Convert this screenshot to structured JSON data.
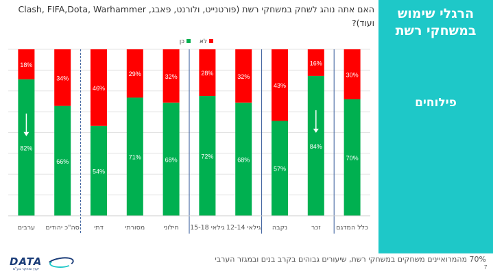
{
  "side": {
    "title": "הרגלי שימוש במשחקי רשת",
    "subtitle": "פילוחים"
  },
  "question": "האם אתה נוהג לשחק במשחקי רשת (פורטנייט, ולורנט, פאבג, Clash, FIFA,Dota, Warhammer ועוד)?",
  "footer": {
    "note": "70% מהמרואיינים משחקים במשחקי רשת, שיעורים גבוהים בקרב בנים ובמגזר הערבי",
    "page": "7",
    "logo_text": "DATA",
    "logo_tagline": "ייעוץ ומחקר בע\"מ"
  },
  "colors": {
    "yes": "#00b050",
    "no": "#ff0000",
    "accent": "#1ec8c8",
    "separator": "#2f5597"
  },
  "chart_data": {
    "type": "bar",
    "stacked": true,
    "categories": [
      "כלל המדגם",
      "זכר",
      "נקבה",
      "גילאי 12-14",
      "גילאי 15-18",
      "חילוני",
      "מסורתי",
      "דתי",
      "סה\"כ יהודים",
      "ערבים"
    ],
    "series": [
      {
        "name": "כן",
        "color": "#00b050",
        "values": [
          70,
          84,
          57,
          68,
          72,
          68,
          71,
          54,
          66,
          82
        ]
      },
      {
        "name": "לא",
        "color": "#ff0000",
        "values": [
          30,
          16,
          43,
          32,
          28,
          32,
          29,
          46,
          34,
          18
        ]
      }
    ],
    "ylim": [
      0,
      100
    ],
    "grid": true,
    "legend_position": "top",
    "value_suffix": "%",
    "arrows_on": [
      "זכר",
      "ערבים"
    ],
    "group_separators_after": [
      "כלל המדגם",
      "נקבה",
      "גילאי 15-18",
      "דתי"
    ],
    "dashed_separators_after": [
      "דתי"
    ]
  }
}
